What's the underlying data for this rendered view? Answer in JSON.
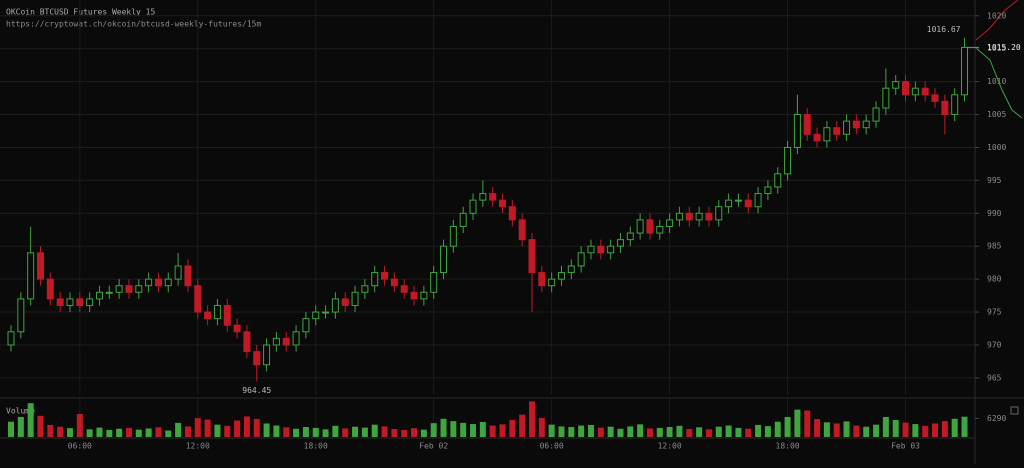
{
  "chart_data": {
    "type": "candlestick",
    "title": "OKCoin BTCUSD Futures Weekly 15",
    "subtitle": "https://cryptowat.ch/okcoin/btcusd-weekly-futures/15m",
    "up_color": "#3fa53f",
    "down_color": "#c21a24",
    "grid": true,
    "ylim": [
      962.4,
      1022.4
    ],
    "yticks": [
      965,
      970,
      975,
      980,
      985,
      990,
      995,
      1000,
      1005,
      1010,
      1015,
      1020
    ],
    "volume_label": "Volume",
    "volume_ylim": [
      0,
      12580
    ],
    "volume_yticks": [
      6290
    ],
    "last_label": "1015.20",
    "categories": [
      null,
      null,
      null,
      null,
      null,
      null,
      null,
      "06:00",
      null,
      null,
      null,
      null,
      null,
      null,
      null,
      null,
      null,
      null,
      null,
      "12:00",
      null,
      null,
      null,
      null,
      null,
      null,
      null,
      null,
      null,
      null,
      null,
      "18:00",
      null,
      null,
      null,
      null,
      null,
      null,
      null,
      null,
      null,
      null,
      null,
      "Feb 02",
      null,
      null,
      null,
      null,
      null,
      null,
      null,
      null,
      null,
      null,
      null,
      "06:00",
      null,
      null,
      null,
      null,
      null,
      null,
      null,
      null,
      null,
      null,
      null,
      "12:00",
      null,
      null,
      null,
      null,
      null,
      null,
      null,
      null,
      null,
      null,
      null,
      "18:00",
      null,
      null,
      null,
      null,
      null,
      null,
      null,
      null,
      null,
      null,
      null,
      "Feb 03",
      null,
      null,
      null,
      null,
      null,
      null
    ],
    "open": [
      970,
      972,
      977,
      984,
      980,
      977,
      976,
      977,
      976,
      977,
      978,
      978,
      979,
      978,
      979,
      980,
      979,
      980,
      982,
      979,
      975,
      974,
      976,
      973,
      972,
      969,
      967,
      970,
      971,
      970,
      972,
      974,
      975,
      975,
      977,
      976,
      978,
      979,
      981,
      980,
      979,
      978,
      977,
      978,
      981,
      985,
      988,
      990,
      992,
      993,
      992,
      991,
      989,
      986,
      981,
      979,
      980,
      981,
      982,
      984,
      985,
      984,
      985,
      986,
      987,
      989,
      987,
      988,
      989,
      990,
      989,
      990,
      989,
      991,
      992,
      992,
      991,
      993,
      994,
      996,
      1000,
      1005,
      1002,
      1001,
      1003,
      1002,
      1004,
      1003,
      1004,
      1006,
      1009,
      1010,
      1008,
      1009,
      1008,
      1007,
      1005,
      1008
    ],
    "high": [
      973,
      978,
      988,
      985,
      981,
      978,
      978,
      978,
      978,
      979,
      979,
      980,
      980,
      980,
      981,
      981,
      981,
      984,
      983,
      980,
      976,
      977,
      977,
      974,
      973,
      970,
      971,
      972,
      972,
      973,
      975,
      976,
      976,
      978,
      978,
      979,
      980,
      982,
      982,
      981,
      980,
      979,
      979,
      982,
      986,
      989,
      991,
      993,
      995,
      994,
      993,
      992,
      990,
      987,
      982,
      981,
      982,
      983,
      985,
      986,
      986,
      986,
      987,
      988,
      990,
      990,
      989,
      990,
      991,
      991,
      991,
      991,
      992,
      993,
      993,
      993,
      994,
      995,
      997,
      1001,
      1008,
      1006,
      1003,
      1004,
      1004,
      1005,
      1005,
      1005,
      1007,
      1012,
      1011,
      1011,
      1010,
      1010,
      1009,
      1008,
      1009,
      1016.67
    ],
    "low": [
      969,
      971,
      976,
      979,
      976,
      975,
      975,
      975,
      975,
      976,
      977,
      977,
      977,
      977,
      978,
      978,
      978,
      979,
      978,
      974,
      973,
      973,
      972,
      971,
      968,
      964.45,
      966,
      969,
      969,
      969,
      971,
      973,
      974,
      974,
      975,
      975,
      977,
      978,
      979,
      978,
      977,
      976,
      976,
      977,
      980,
      984,
      987,
      989,
      991,
      991,
      990,
      988,
      985,
      975,
      978,
      978,
      979,
      980,
      981,
      983,
      983,
      983,
      984,
      985,
      986,
      986,
      986,
      987,
      988,
      988,
      988,
      988,
      988,
      990,
      991,
      990,
      990,
      992,
      993,
      995,
      999,
      1001,
      1000,
      1000,
      1001,
      1001,
      1002,
      1002,
      1003,
      1005,
      1008,
      1007,
      1007,
      1007,
      1006,
      1002,
      1004,
      1007
    ],
    "close": [
      972,
      977,
      984,
      980,
      977,
      976,
      977,
      976,
      977,
      978,
      978,
      979,
      978,
      979,
      980,
      979,
      980,
      982,
      979,
      975,
      974,
      976,
      973,
      972,
      969,
      967,
      970,
      971,
      970,
      972,
      974,
      975,
      975,
      977,
      976,
      978,
      979,
      981,
      980,
      979,
      978,
      977,
      978,
      981,
      985,
      988,
      990,
      992,
      993,
      992,
      991,
      989,
      986,
      981,
      979,
      980,
      981,
      982,
      984,
      985,
      984,
      985,
      986,
      987,
      989,
      987,
      988,
      989,
      990,
      989,
      990,
      989,
      991,
      992,
      992,
      991,
      993,
      994,
      996,
      1000,
      1005,
      1002,
      1001,
      1003,
      1002,
      1004,
      1003,
      1004,
      1006,
      1009,
      1010,
      1008,
      1009,
      1008,
      1007,
      1005,
      1008,
      1015.2
    ],
    "volume": [
      5200,
      6800,
      11500,
      7200,
      4100,
      3500,
      3000,
      7800,
      2600,
      3200,
      2400,
      2800,
      3100,
      2500,
      2900,
      3300,
      2200,
      4800,
      3600,
      6400,
      5900,
      4200,
      3800,
      5600,
      7000,
      6100,
      4600,
      3900,
      3300,
      2800,
      3400,
      3100,
      2600,
      3800,
      2900,
      3500,
      3200,
      4200,
      3600,
      2700,
      2400,
      3000,
      2500,
      4700,
      6200,
      5400,
      4800,
      4400,
      5100,
      3900,
      4300,
      5800,
      7600,
      12100,
      6500,
      4200,
      3600,
      3400,
      3900,
      4100,
      3200,
      3500,
      2800,
      3600,
      4300,
      2900,
      3100,
      3400,
      3800,
      2700,
      3300,
      2600,
      3500,
      3900,
      3100,
      2800,
      4100,
      3700,
      5200,
      6800,
      9300,
      9000,
      6100,
      5000,
      4600,
      5300,
      3900,
      3500,
      4200,
      6800,
      5800,
      4900,
      4400,
      3800,
      4600,
      5400,
      6200,
      6900
    ]
  }
}
